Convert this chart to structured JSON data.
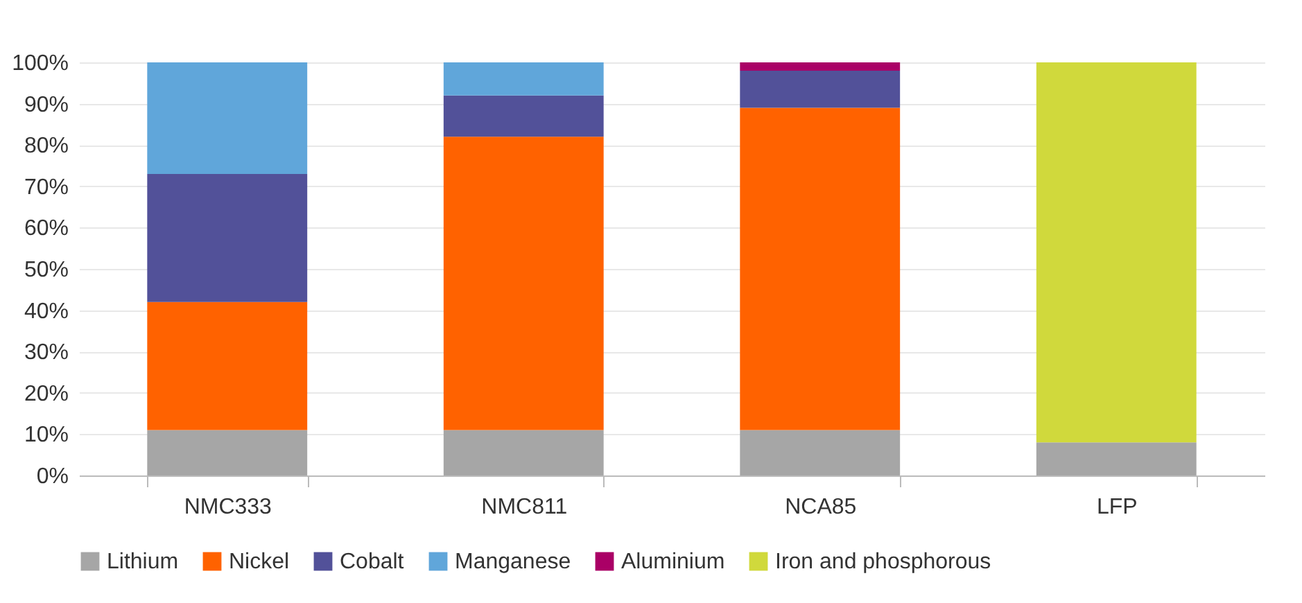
{
  "chart_data": {
    "type": "bar",
    "stacked": true,
    "categories": [
      "NMC333",
      "NMC811",
      "NCA85",
      "LFP"
    ],
    "series": [
      {
        "name": "Lithium",
        "color": "#a6a6a6",
        "values": [
          11,
          11,
          11,
          8
        ]
      },
      {
        "name": "Nickel",
        "color": "#ff6200",
        "values": [
          31,
          71,
          78,
          null
        ]
      },
      {
        "name": "Cobalt",
        "color": "#525199",
        "values": [
          31,
          10,
          9,
          null
        ]
      },
      {
        "name": "Manganese",
        "color": "#60a6da",
        "values": [
          27,
          8,
          null,
          null
        ]
      },
      {
        "name": "Aluminium",
        "color": "#aa0066",
        "values": [
          null,
          null,
          2,
          null
        ]
      },
      {
        "name": "Iron and phosphorous",
        "color": "#d0d93c",
        "values": [
          null,
          null,
          null,
          92
        ]
      }
    ],
    "ylim": [
      0,
      100
    ],
    "yticks": [
      {
        "value": 0,
        "label": "0%"
      },
      {
        "value": 10,
        "label": "10%"
      },
      {
        "value": 20,
        "label": "20%"
      },
      {
        "value": 30,
        "label": "30%"
      },
      {
        "value": 40,
        "label": "40%"
      },
      {
        "value": 50,
        "label": "50%"
      },
      {
        "value": 60,
        "label": "60%"
      },
      {
        "value": 70,
        "label": "70%"
      },
      {
        "value": 80,
        "label": "80%"
      },
      {
        "value": 90,
        "label": "90%"
      },
      {
        "value": 100,
        "label": "100%"
      }
    ],
    "grid": "y",
    "legend": "bottom"
  }
}
